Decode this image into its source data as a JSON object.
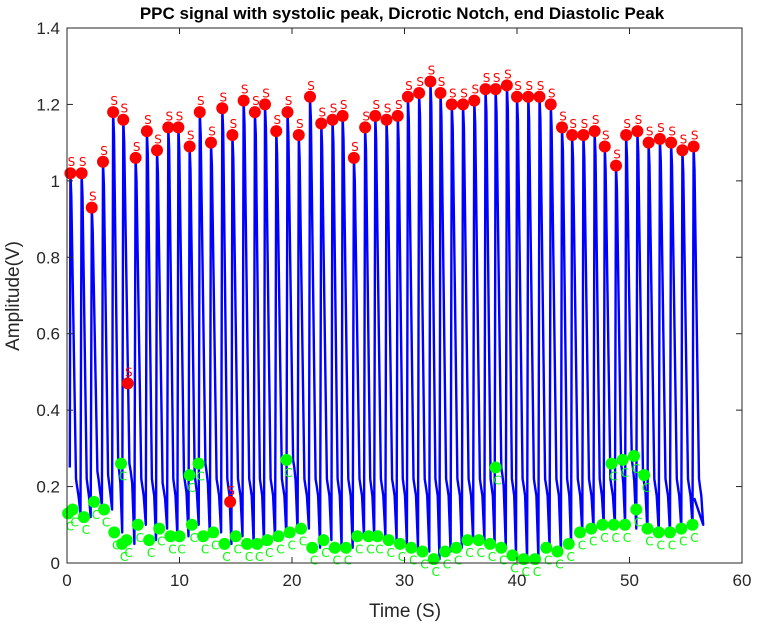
{
  "chart_data": {
    "type": "line",
    "title": "PPC signal with systolic peak, Dicrotic Notch, end Diastolic Peak",
    "xlabel": "Time (S)",
    "ylabel": "Amplitude(V)",
    "xlim": [
      0,
      60
    ],
    "ylim": [
      0,
      1.4
    ],
    "xticks": [
      0,
      10,
      20,
      30,
      40,
      50,
      60
    ],
    "xtick_labels": [
      "0",
      "10",
      "20",
      "30",
      "40",
      "50",
      "60"
    ],
    "yticks": [
      0,
      0.2,
      0.4,
      0.6,
      0.8,
      1,
      1.2,
      1.4
    ],
    "ytick_labels": [
      "0",
      "0.2",
      "0.4",
      "0.6",
      "0.8",
      "1",
      "1.2",
      "1.4"
    ],
    "grid": false,
    "marker_labels": {
      "systolic": "S",
      "notch": "C",
      "diastolic": "C"
    },
    "colors": {
      "signal": "#0000ff",
      "systolic": "#ff0000",
      "notch": "#00ff00",
      "axis": "#262626"
    },
    "series": [
      {
        "role": "signal",
        "style": "line",
        "peak_times": [
          0.3,
          1.3,
          2.2,
          3.2,
          4.1,
          5.0,
          6.1,
          7.1,
          8.0,
          9.0,
          9.9,
          10.9,
          11.8,
          12.8,
          13.8,
          14.7,
          15.7,
          16.7,
          17.6,
          18.6,
          19.6,
          20.6,
          21.6,
          22.6,
          23.6,
          24.5,
          25.5,
          26.5,
          27.4,
          28.4,
          29.4,
          30.3,
          31.3,
          32.3,
          33.2,
          34.2,
          35.2,
          36.2,
          37.2,
          38.1,
          39.1,
          40.0,
          41.0,
          42.0,
          43.0,
          44.0,
          44.9,
          45.9,
          46.9,
          47.8,
          48.8,
          49.7,
          50.7,
          51.7,
          52.7,
          53.7,
          54.7,
          55.7
        ],
        "peak_values": [
          1.02,
          1.02,
          0.93,
          1.05,
          1.18,
          1.16,
          1.06,
          1.13,
          1.08,
          1.14,
          1.14,
          1.09,
          1.18,
          1.1,
          1.19,
          1.12,
          1.21,
          1.18,
          1.2,
          1.13,
          1.18,
          1.12,
          1.22,
          1.15,
          1.16,
          1.17,
          1.06,
          1.14,
          1.17,
          1.16,
          1.17,
          1.22,
          1.23,
          1.26,
          1.23,
          1.2,
          1.2,
          1.21,
          1.24,
          1.24,
          1.25,
          1.22,
          1.22,
          1.22,
          1.2,
          1.14,
          1.12,
          1.12,
          1.13,
          1.09,
          1.04,
          1.12,
          1.13,
          1.1,
          1.11,
          1.1,
          1.08,
          1.09
        ],
        "trough_values": [
          0.13,
          0.12,
          0.15,
          0.14,
          0.08,
          0.05,
          0.1,
          0.06,
          0.09,
          0.07,
          0.07,
          0.1,
          0.07,
          0.08,
          0.05,
          0.07,
          0.05,
          0.05,
          0.06,
          0.07,
          0.08,
          0.09,
          0.04,
          0.06,
          0.04,
          0.04,
          0.07,
          0.07,
          0.07,
          0.06,
          0.05,
          0.04,
          0.03,
          0.01,
          0.03,
          0.04,
          0.06,
          0.06,
          0.05,
          0.04,
          0.02,
          0.01,
          0.01,
          0.04,
          0.03,
          0.05,
          0.08,
          0.09,
          0.1,
          0.1,
          0.1,
          0.09,
          0.08,
          0.08,
          0.08,
          0.09,
          0.1,
          0.1
        ],
        "notch_values": [
          0.22,
          0.22,
          0.24,
          0.23,
          0.26,
          0.26,
          0.22,
          0.22,
          0.21,
          0.22,
          0.23,
          0.23,
          0.26,
          0.22,
          0.22,
          0.22,
          0.22,
          0.22,
          0.22,
          0.22,
          0.27,
          0.22,
          0.22,
          0.22,
          0.22,
          0.22,
          0.22,
          0.22,
          0.22,
          0.22,
          0.22,
          0.22,
          0.22,
          0.22,
          0.22,
          0.22,
          0.22,
          0.22,
          0.22,
          0.25,
          0.22,
          0.22,
          0.22,
          0.22,
          0.22,
          0.22,
          0.22,
          0.22,
          0.22,
          0.22,
          0.26,
          0.27,
          0.23,
          0.22,
          0.22,
          0.22,
          0.22,
          0.22
        ]
      },
      {
        "role": "systolic",
        "style": "markers",
        "x": [
          0.3,
          1.3,
          2.2,
          3.2,
          4.1,
          5.0,
          5.4,
          6.1,
          7.1,
          8.0,
          9.0,
          9.9,
          10.9,
          11.8,
          12.8,
          13.8,
          14.5,
          14.7,
          15.7,
          16.7,
          17.6,
          18.6,
          19.6,
          20.6,
          21.6,
          22.6,
          23.6,
          24.5,
          25.5,
          26.5,
          27.4,
          28.4,
          29.4,
          30.3,
          31.3,
          32.3,
          33.2,
          34.2,
          35.2,
          36.2,
          37.2,
          38.1,
          39.1,
          40.0,
          41.0,
          42.0,
          43.0,
          44.0,
          44.9,
          45.9,
          46.9,
          47.8,
          48.8,
          49.7,
          50.7,
          51.7,
          52.7,
          53.7,
          54.7,
          55.7
        ],
        "y": [
          1.02,
          1.02,
          0.93,
          1.05,
          1.18,
          1.16,
          0.47,
          1.06,
          1.13,
          1.08,
          1.14,
          1.14,
          1.09,
          1.18,
          1.1,
          1.19,
          0.16,
          1.12,
          1.21,
          1.18,
          1.2,
          1.13,
          1.18,
          1.12,
          1.22,
          1.15,
          1.16,
          1.17,
          1.06,
          1.14,
          1.17,
          1.16,
          1.17,
          1.22,
          1.23,
          1.26,
          1.23,
          1.2,
          1.2,
          1.21,
          1.24,
          1.24,
          1.25,
          1.22,
          1.22,
          1.22,
          1.2,
          1.14,
          1.12,
          1.12,
          1.13,
          1.09,
          1.04,
          1.12,
          1.13,
          1.1,
          1.11,
          1.1,
          1.08,
          1.09
        ]
      },
      {
        "role": "notch",
        "style": "markers",
        "x": [
          0.1,
          0.5,
          1.5,
          2.4,
          3.3,
          4.2,
          4.8,
          4.9,
          5.3,
          6.3,
          7.3,
          8.2,
          9.2,
          10.0,
          10.9,
          11.1,
          11.7,
          12.1,
          13.0,
          14.0,
          15.0,
          16.0,
          16.9,
          17.8,
          18.8,
          19.5,
          19.8,
          20.8,
          21.8,
          22.8,
          23.8,
          24.8,
          25.8,
          26.8,
          27.6,
          28.6,
          29.6,
          30.6,
          31.6,
          32.6,
          33.6,
          34.6,
          35.6,
          36.6,
          37.6,
          38.1,
          38.6,
          39.6,
          40.6,
          41.6,
          42.6,
          43.6,
          44.6,
          45.6,
          46.6,
          47.6,
          48.4,
          48.6,
          49.4,
          49.6,
          50.4,
          50.6,
          51.3,
          51.6,
          52.6,
          53.6,
          54.6,
          55.6
        ],
        "y": [
          0.13,
          0.14,
          0.12,
          0.16,
          0.14,
          0.08,
          0.26,
          0.05,
          0.06,
          0.1,
          0.06,
          0.09,
          0.07,
          0.07,
          0.23,
          0.1,
          0.26,
          0.07,
          0.08,
          0.05,
          0.07,
          0.05,
          0.05,
          0.06,
          0.07,
          0.27,
          0.08,
          0.09,
          0.04,
          0.06,
          0.04,
          0.04,
          0.07,
          0.07,
          0.07,
          0.06,
          0.05,
          0.04,
          0.03,
          0.01,
          0.03,
          0.04,
          0.06,
          0.06,
          0.05,
          0.25,
          0.04,
          0.02,
          0.01,
          0.01,
          0.04,
          0.03,
          0.05,
          0.08,
          0.09,
          0.1,
          0.26,
          0.1,
          0.27,
          0.1,
          0.28,
          0.14,
          0.23,
          0.09,
          0.08,
          0.08,
          0.09,
          0.1
        ]
      }
    ]
  }
}
